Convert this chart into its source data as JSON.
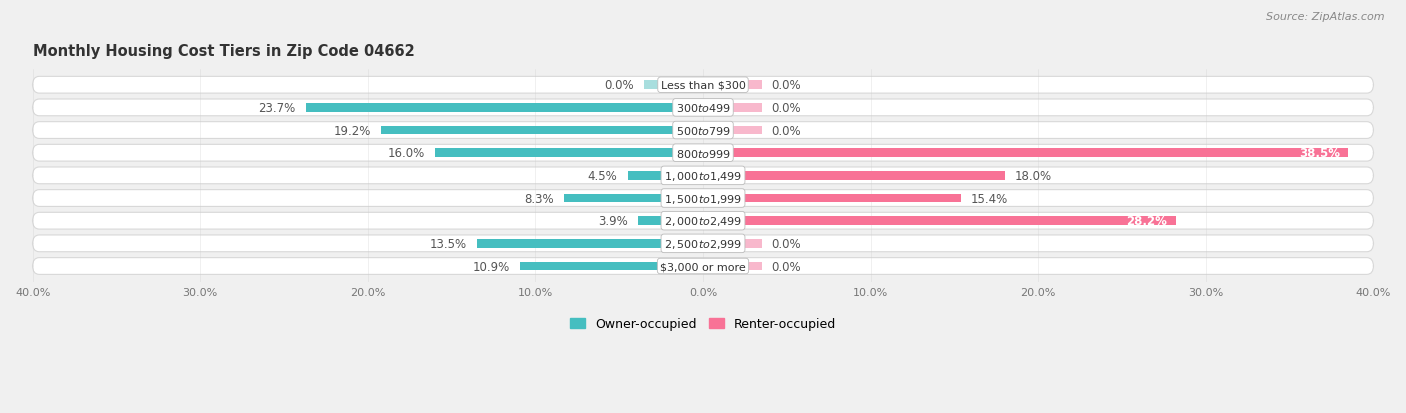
{
  "title": "Monthly Housing Cost Tiers in Zip Code 04662",
  "source": "Source: ZipAtlas.com",
  "categories": [
    "Less than $300",
    "$300 to $499",
    "$500 to $799",
    "$800 to $999",
    "$1,000 to $1,499",
    "$1,500 to $1,999",
    "$2,000 to $2,499",
    "$2,500 to $2,999",
    "$3,000 or more"
  ],
  "owner_values": [
    0.0,
    23.7,
    19.2,
    16.0,
    4.5,
    8.3,
    3.9,
    13.5,
    10.9
  ],
  "renter_values": [
    0.0,
    0.0,
    0.0,
    38.5,
    18.0,
    15.4,
    28.2,
    0.0,
    0.0
  ],
  "owner_color": "#45bec0",
  "renter_color": "#f87296",
  "owner_zero_color": "#a8dede",
  "renter_zero_color": "#f8b8cc",
  "row_bg_color": "#ffffff",
  "row_border_color": "#d8d8d8",
  "background_color": "#f0f0f0",
  "xlim": 40.0,
  "zero_stub": 3.5,
  "label_fontsize": 8.5,
  "title_fontsize": 10.5,
  "source_fontsize": 8,
  "cat_fontsize": 8.0
}
